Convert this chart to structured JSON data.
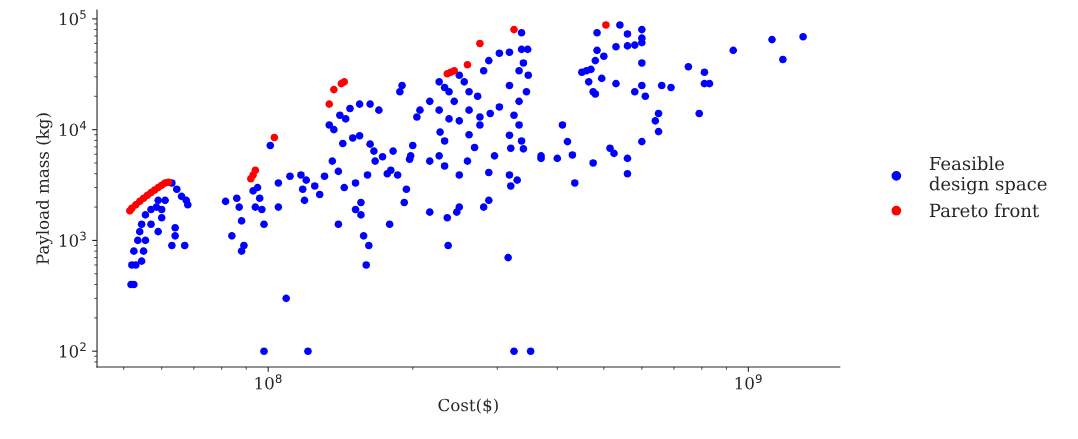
{
  "chart_data": {
    "type": "scatter",
    "xlabel": "Cost($)",
    "ylabel": "Payload mass (kg)",
    "log": "xy",
    "grid": false,
    "legend": "right",
    "marker": "circle",
    "xlim": [
      44000000,
      1550000000
    ],
    "ylim": [
      72,
      120000
    ],
    "xticks": [
      {
        "value": 100000000,
        "label": "10$^{8}$"
      },
      {
        "value": 1000000000,
        "label": "10$^{9}$"
      }
    ],
    "yticks": [
      {
        "value": 100,
        "label": "10$^{2}$"
      },
      {
        "value": 1000,
        "label": "10$^{3}$"
      },
      {
        "value": 10000,
        "label": "10$^{4}$"
      },
      {
        "value": 100000,
        "label": "10$^{5}$"
      }
    ],
    "series": [
      {
        "name": "Feasible\ndesign space",
        "color": "#0000ff",
        "x": [
          63000000,
          64500000,
          66000000,
          67500000,
          68000000,
          51800000,
          52500000,
          52000000,
          53000000,
          52500000,
          53500000,
          54000000,
          54500000,
          55500000,
          57000000,
          58500000,
          59000000,
          60000000,
          61000000,
          63000000,
          67000000,
          64000000,
          64000000,
          57000000,
          55500000,
          55000000,
          54500000,
          59000000,
          60000000,
          81500000,
          86000000,
          87000000,
          88000000,
          84000000,
          89000000,
          88000000,
          93000000,
          95000000,
          94000000,
          97000000,
          96000000,
          98000000,
          98000000,
          109000000,
          121000000,
          101000000,
          105000000,
          105000000,
          111000000,
          134000000,
          141000000,
          148000000,
          155000000,
          163000000,
          170000000,
          137000000,
          145000000,
          117000000,
          120000000,
          125000000,
          118000000,
          119000000,
          128000000,
          131000000,
          136000000,
          140000000,
          144000000,
          143000000,
          150000000,
          155000000,
          163000000,
          166000000,
          167000000,
          173000000,
          180000000,
          182000000,
          186000000,
          197000000,
          194000000,
          192000000,
          156000000,
          161000000,
          152000000,
          140000000,
          156000000,
          158000000,
          160000000,
          162000000,
          179000000,
          190000000,
          188000000,
          177000000,
          152000000,
          227000000,
          233000000,
          238000000,
          244000000,
          250000000,
          256000000,
          262000000,
          273000000,
          281000000,
          288000000,
          303000000,
          318000000,
          337000000,
          340000000,
          333000000,
          348000000,
          345000000,
          333000000,
          318000000,
          303000000,
          290000000,
          276000000,
          262000000,
          250000000,
          238000000,
          227000000,
          217000000,
          207000000,
          204000000,
          228000000,
          233000000,
          262000000,
          276000000,
          318000000,
          320000000,
          337000000,
          340000000,
          370000000,
          370000000,
          296000000,
          288000000,
          318000000,
          320000000,
          330000000,
          250000000,
          288000000,
          281000000,
          250000000,
          247000000,
          236000000,
          217000000,
          237000000,
          316000000,
          325000000,
          352000000,
          269000000,
          260000000,
          233000000,
          227000000,
          200000000,
          198000000,
          217000000,
          325000000,
          333000000,
          347000000,
          337000000,
          484000000,
          540000000,
          560000000,
          600000000,
          600000000,
          600000000,
          580000000,
          560000000,
          530000000,
          484000000,
          500000000,
          460000000,
          470000000,
          480000000,
          450000000,
          465000000,
          475000000,
          480000000,
          495000000,
          530000000,
          600000000,
          600000000,
          580000000,
          610000000,
          660000000,
          690000000,
          750000000,
          810000000,
          830000000,
          810000000,
          930000000,
          1120000000,
          1180000000,
          1300000000,
          790000000,
          650000000,
          640000000,
          410000000,
          420000000,
          600000000,
          560000000,
          430000000,
          435000000,
          560000000,
          525000000,
          475000000,
          400000000,
          650000000,
          515000000
        ],
        "values": [
          3300,
          2900,
          2500,
          2300,
          2100,
          400,
          400,
          600,
          600,
          800,
          1000,
          1200,
          1400,
          1700,
          1900,
          2000,
          1200,
          1600,
          2300,
          900,
          900,
          1300,
          1100,
          1400,
          1000,
          800,
          650,
          2300,
          1900,
          2250,
          2400,
          2000,
          1500,
          1100,
          900,
          800,
          2800,
          3000,
          2000,
          1900,
          2400,
          1400,
          100,
          300,
          100,
          7200,
          2000,
          3300,
          3800,
          11000,
          13500,
          15500,
          17000,
          17000,
          15000,
          10000,
          12500,
          3900,
          3500,
          3100,
          2900,
          2300,
          2600,
          3800,
          5200,
          4200,
          3000,
          7500,
          8400,
          8800,
          7400,
          6400,
          5200,
          5700,
          4300,
          6400,
          3900,
          5400,
          2900,
          2200,
          2200,
          3900,
          1900,
          1400,
          1700,
          1100,
          600,
          900,
          1400,
          25000,
          22000,
          4000,
          3300,
          27000,
          24000,
          22000,
          18000,
          31000,
          27000,
          22000,
          20000,
          34000,
          42000,
          49000,
          50000,
          53000,
          40000,
          34000,
          31000,
          22000,
          18000,
          25000,
          16000,
          14000,
          13000,
          15000,
          12000,
          12500,
          15000,
          18000,
          15000,
          13000,
          9500,
          7900,
          9000,
          11000,
          8900,
          6800,
          7900,
          6700,
          5800,
          5500,
          5800,
          4100,
          3900,
          3100,
          3500,
          3900,
          2300,
          2000,
          2000,
          1800,
          1600,
          1800,
          900,
          700,
          100,
          100,
          6900,
          5200,
          4700,
          5800,
          7200,
          5800,
          5200,
          13500,
          11000,
          53000,
          75000,
          75000,
          88000,
          73000,
          80000,
          67000,
          61000,
          58000,
          57000,
          56000,
          52000,
          46000,
          34000,
          35000,
          42000,
          33000,
          27000,
          22000,
          21000,
          29000,
          26000,
          40000,
          25000,
          22000,
          20000,
          25000,
          24000,
          37000,
          33000,
          26000,
          26000,
          52000,
          65000,
          43000,
          69000,
          14000,
          14000,
          12000,
          11000,
          7800,
          7800,
          5500,
          5900,
          3300,
          4000,
          6100,
          5000,
          5500,
          9600,
          6800
        ]
      },
      {
        "name": "Pareto front",
        "color": "#ff0000",
        "x": [
          51500000,
          52000000,
          53000000,
          54000000,
          55000000,
          56000000,
          57000000,
          58000000,
          59000000,
          60000000,
          61000000,
          62000000,
          92000000,
          93000000,
          94000000,
          103000000,
          134000000,
          137000000,
          142000000,
          144000000,
          236000000,
          240000000,
          244000000,
          260000000,
          276000000,
          325000000,
          505000000
        ],
        "values": [
          1850,
          1950,
          2100,
          2250,
          2400,
          2550,
          2700,
          2850,
          3000,
          3150,
          3300,
          3350,
          3600,
          3900,
          4300,
          8500,
          17000,
          23000,
          26000,
          27000,
          32000,
          33000,
          34000,
          38500,
          60000,
          80000,
          88000
        ]
      }
    ]
  }
}
